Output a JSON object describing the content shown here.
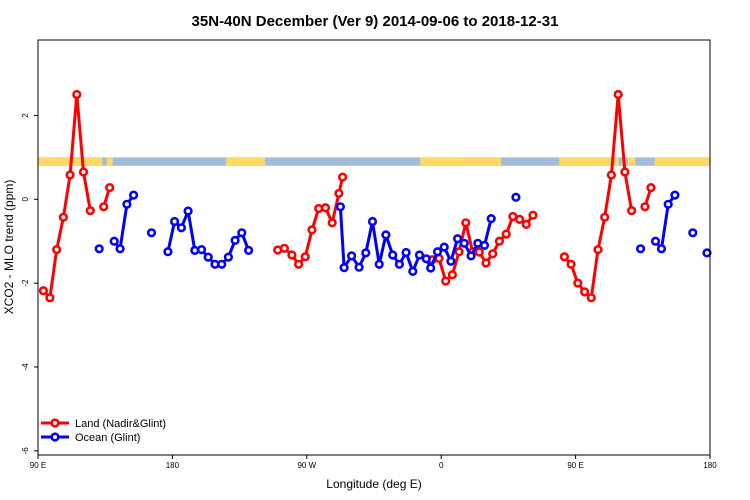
{
  "chart_data": {
    "type": "line",
    "title": "35N-40N December (Ver 9)   2014-09-06 to 2018-12-31",
    "xlabel": "Longitude (deg E)",
    "ylabel": "XCO2 - MLO trend (ppm)",
    "xlim": [
      90,
      540
    ],
    "ylim": [
      -6.1,
      3.8
    ],
    "x_ticks": [
      {
        "value": 90,
        "label": "90 E"
      },
      {
        "value": 180,
        "label": "180"
      },
      {
        "value": 270,
        "label": "90 W"
      },
      {
        "value": 360,
        "label": "0"
      },
      {
        "value": 450,
        "label": "90 E"
      },
      {
        "value": 540,
        "label": "180"
      }
    ],
    "y_ticks": [
      {
        "value": 2,
        "label": "2"
      },
      {
        "value": 0,
        "label": "0"
      },
      {
        "value": -2,
        "label": "-2"
      },
      {
        "value": -4,
        "label": "-4"
      },
      {
        "value": -6,
        "label": "-6"
      }
    ],
    "grid": false,
    "legend": {
      "position": "bottom-left"
    },
    "surface_band": {
      "y_range": [
        0.8,
        1.0
      ],
      "land_color": "#ffd966",
      "ocean_color": "#a2bcdc",
      "land_ranges": [
        [
          90,
          124
        ],
        [
          103,
          110
        ],
        [
          101,
          128
        ],
        [
          105,
          133
        ],
        [
          136,
          140
        ],
        [
          216,
          242
        ],
        [
          346,
          399
        ],
        [
          372,
          400
        ],
        [
          439,
          479
        ],
        [
          481,
          482
        ],
        [
          485,
          490
        ],
        [
          503,
          566
        ],
        [
          537,
          546
        ]
      ]
    },
    "series": [
      {
        "name": "Land (Nadir&Glint)",
        "color": "#ff0000",
        "segments": [
          [
            [
              93.6,
              -2.18
            ],
            [
              98,
              -2.35
            ],
            [
              102.5,
              -1.2
            ],
            [
              107,
              -0.43
            ],
            [
              111.5,
              0.58
            ],
            [
              116,
              2.5
            ],
            [
              120.5,
              0.65
            ],
            [
              125,
              -0.27
            ]
          ],
          [
            [
              134,
              -0.18
            ],
            [
              138,
              0.28
            ]
          ],
          [
            [
              250.5,
              -1.21
            ],
            [
              255,
              -1.17
            ],
            [
              260,
              -1.33
            ],
            [
              264.5,
              -1.55
            ],
            [
              269,
              -1.37
            ],
            [
              273.5,
              -0.73
            ],
            [
              278,
              -0.22
            ],
            [
              282.5,
              -0.2
            ],
            [
              287,
              -0.56
            ],
            [
              291.5,
              0.14
            ],
            [
              294,
              0.53
            ]
          ],
          [
            [
              354,
              -1.44
            ],
            [
              358.5,
              -1.41
            ],
            [
              363,
              -1.95
            ],
            [
              367.5,
              -1.8
            ],
            [
              372,
              -1.25
            ],
            [
              376.5,
              -0.56
            ],
            [
              381,
              -1.25
            ],
            [
              385.5,
              -1.26
            ],
            [
              390,
              -1.52
            ],
            [
              394.5,
              -1.3
            ],
            [
              399,
              -1.0
            ],
            [
              403.5,
              -0.83
            ],
            [
              408,
              -0.41
            ],
            [
              412.5,
              -0.48
            ],
            [
              417,
              -0.6
            ],
            [
              421.5,
              -0.38
            ]
          ],
          [
            [
              442.5,
              -1.37
            ],
            [
              447,
              -1.55
            ],
            [
              451.5,
              -2.0
            ],
            [
              456,
              -2.21
            ],
            [
              460.5,
              -2.35
            ],
            [
              465,
              -1.2
            ],
            [
              469.5,
              -0.43
            ],
            [
              474,
              0.58
            ],
            [
              478.5,
              2.5
            ],
            [
              483,
              0.65
            ],
            [
              487.5,
              -0.27
            ]
          ],
          [
            [
              496.5,
              -0.18
            ],
            [
              500.5,
              0.28
            ]
          ]
        ]
      },
      {
        "name": "Ocean (Glint)",
        "color": "#0000ff",
        "segments": [
          [
            [
              131,
              -1.18
            ]
          ],
          [
            [
              141,
              -1.0
            ],
            [
              145,
              -1.18
            ],
            [
              149.5,
              -0.12
            ],
            [
              154,
              0.1
            ]
          ],
          [
            [
              166,
              -0.8
            ]
          ],
          [
            [
              177,
              -1.25
            ],
            [
              181.5,
              -0.53
            ],
            [
              186,
              -0.68
            ],
            [
              190.5,
              -0.28
            ],
            [
              195,
              -1.22
            ],
            [
              199.5,
              -1.2
            ],
            [
              204,
              -1.38
            ],
            [
              208.5,
              -1.55
            ],
            [
              213,
              -1.55
            ],
            [
              217.5,
              -1.38
            ],
            [
              222,
              -0.98
            ],
            [
              226.5,
              -0.8
            ],
            [
              231,
              -1.22
            ]
          ],
          [
            [
              292.5,
              -0.18
            ],
            [
              295,
              -1.63
            ],
            [
              300,
              -1.35
            ],
            [
              305,
              -1.62
            ],
            [
              309.5,
              -1.28
            ],
            [
              314,
              -0.53
            ],
            [
              318.5,
              -1.55
            ],
            [
              323,
              -0.85
            ],
            [
              327.5,
              -1.33
            ],
            [
              332,
              -1.55
            ],
            [
              336.5,
              -1.27
            ],
            [
              341,
              -1.72
            ],
            [
              345.5,
              -1.33
            ],
            [
              350,
              -1.42
            ],
            [
              353,
              -1.64
            ],
            [
              357.5,
              -1.25
            ],
            [
              362,
              -1.14
            ],
            [
              366.5,
              -1.48
            ],
            [
              371,
              -0.94
            ],
            [
              375.5,
              -1.05
            ],
            [
              380,
              -1.35
            ],
            [
              384.5,
              -1.05
            ],
            [
              389,
              -1.1
            ],
            [
              393.5,
              -0.46
            ]
          ],
          [
            [
              410,
              0.05
            ]
          ],
          [
            [
              493.5,
              -1.18
            ]
          ],
          [
            [
              503.5,
              -1.0
            ],
            [
              507.5,
              -1.18
            ],
            [
              512,
              -0.12
            ],
            [
              516.5,
              0.1
            ]
          ],
          [
            [
              528.5,
              -0.8
            ]
          ],
          [
            [
              538,
              -1.28
            ]
          ]
        ]
      }
    ]
  }
}
